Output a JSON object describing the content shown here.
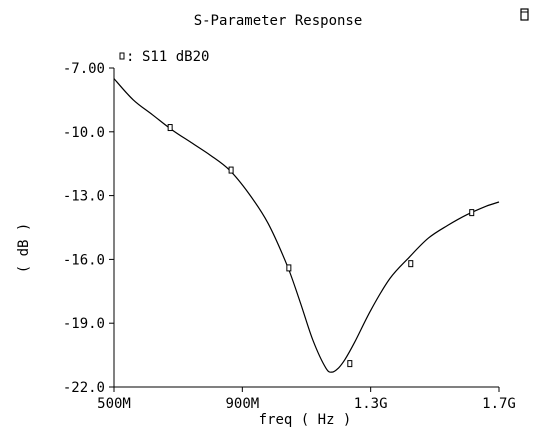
{
  "chart_data": {
    "type": "line",
    "title": "S-Parameter Response",
    "xlabel": "freq ( Hz )",
    "ylabel": "( dB )",
    "xlim": [
      500000000,
      1700000000
    ],
    "ylim": [
      -22.0,
      -7.0
    ],
    "x_ticks": [
      {
        "value": 500000000,
        "label": "500M"
      },
      {
        "value": 900000000,
        "label": "900M"
      },
      {
        "value": 1300000000,
        "label": "1.3G"
      },
      {
        "value": 1700000000,
        "label": "1.7G"
      }
    ],
    "y_ticks": [
      {
        "value": -7.0,
        "label": "-7.00"
      },
      {
        "value": -10.0,
        "label": "-10.0"
      },
      {
        "value": -13.0,
        "label": "-13.0"
      },
      {
        "value": -16.0,
        "label": "-16.0"
      },
      {
        "value": -19.0,
        "label": "-19.0"
      },
      {
        "value": -22.0,
        "label": "-22.0"
      }
    ],
    "grid": false,
    "legend": {
      "position": "top-left",
      "marker": "▯",
      "separator": ":"
    },
    "series": [
      {
        "name": "S11 dB20",
        "x": [
          500000000,
          560000000,
          620000000,
          680000000,
          740000000,
          800000000,
          860000000,
          920000000,
          980000000,
          1040000000,
          1080000000,
          1120000000,
          1160000000,
          1180000000,
          1200000000,
          1220000000,
          1250000000,
          1300000000,
          1360000000,
          1420000000,
          1480000000,
          1540000000,
          1600000000,
          1660000000,
          1700000000
        ],
        "y": [
          -7.5,
          -8.5,
          -9.2,
          -9.9,
          -10.5,
          -11.1,
          -11.8,
          -12.9,
          -14.3,
          -16.3,
          -18.0,
          -19.8,
          -21.1,
          -21.3,
          -21.1,
          -20.7,
          -19.9,
          -18.4,
          -16.9,
          -15.9,
          -15.0,
          -14.4,
          -13.9,
          -13.5,
          -13.3
        ]
      }
    ],
    "markers": [
      {
        "x": 675000000,
        "y": -9.8
      },
      {
        "x": 865000000,
        "y": -11.8
      },
      {
        "x": 1045000000,
        "y": -16.4
      },
      {
        "x": 1235000000,
        "y": -20.9
      },
      {
        "x": 1425000000,
        "y": -16.2
      },
      {
        "x": 1615000000,
        "y": -13.8
      }
    ]
  }
}
